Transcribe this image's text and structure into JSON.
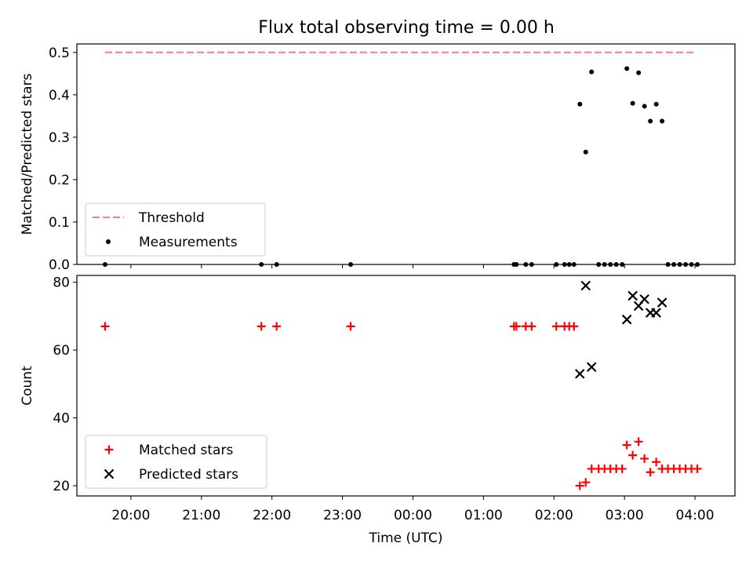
{
  "title": "Flux total observing time = 0.00 h",
  "chart_data": [
    {
      "type": "scatter",
      "ylabel": "Matched/Predicted stars",
      "xlabel": "",
      "ylim": [
        0,
        0.52
      ],
      "yticks": [
        "0.0",
        "0.1",
        "0.2",
        "0.3",
        "0.4",
        "0.5"
      ],
      "grid": false,
      "legend": "lower-left",
      "threshold": {
        "name": "Threshold",
        "value": 0.5,
        "x_start": "19:38",
        "x_end": "04:00",
        "color": "#f27f7f",
        "style": "dashed"
      },
      "series": [
        {
          "name": "Measurements",
          "color": "#000000",
          "marker": "dot",
          "x": [
            "19:38",
            "21:51",
            "22:04",
            "23:07",
            "01:26",
            "01:28",
            "01:36",
            "01:41",
            "02:02",
            "02:09",
            "02:13",
            "02:17",
            "02:22",
            "02:27",
            "02:32",
            "02:38",
            "02:43",
            "02:48",
            "02:53",
            "02:58",
            "03:02",
            "03:07",
            "03:12",
            "03:17",
            "03:22",
            "03:27",
            "03:32",
            "03:37",
            "03:42",
            "03:47",
            "03:52",
            "03:57",
            "04:02"
          ],
          "y": [
            0,
            0,
            0,
            0,
            0,
            0,
            0,
            0,
            0,
            0,
            0,
            0,
            0.378,
            0.265,
            0.454,
            0,
            0,
            0,
            0,
            0,
            0.462,
            0.38,
            0.452,
            0.373,
            0.338,
            0.378,
            0.338,
            0,
            0,
            0,
            0,
            0,
            0
          ]
        }
      ]
    },
    {
      "type": "scatter",
      "ylabel": "Count",
      "xlabel": "Time (UTC)",
      "ylim": [
        17,
        82
      ],
      "yticks": [
        "20",
        "40",
        "60",
        "80"
      ],
      "xticks": [
        "20:00",
        "21:00",
        "22:00",
        "23:00",
        "00:00",
        "01:00",
        "02:00",
        "03:00",
        "04:00"
      ],
      "grid": false,
      "legend": "lower-left",
      "series": [
        {
          "name": "Matched stars",
          "color": "#ff0000",
          "marker": "plus",
          "x": [
            "19:38",
            "21:51",
            "22:04",
            "23:07",
            "01:26",
            "01:28",
            "01:36",
            "01:41",
            "02:02",
            "02:09",
            "02:13",
            "02:17",
            "02:22",
            "02:27",
            "02:32",
            "02:38",
            "02:43",
            "02:48",
            "02:53",
            "02:58",
            "03:02",
            "03:07",
            "03:12",
            "03:17",
            "03:22",
            "03:27",
            "03:32",
            "03:37",
            "03:42",
            "03:47",
            "03:52",
            "03:57",
            "04:02"
          ],
          "y": [
            67,
            67,
            67,
            67,
            67,
            67,
            67,
            67,
            67,
            67,
            67,
            67,
            20,
            21,
            25,
            25,
            25,
            25,
            25,
            25,
            32,
            29,
            33,
            28,
            24,
            27,
            25,
            25,
            25,
            25,
            25,
            25,
            25
          ]
        },
        {
          "name": "Predicted stars",
          "color": "#000000",
          "marker": "x",
          "x": [
            "02:22",
            "02:27",
            "02:32",
            "03:02",
            "03:07",
            "03:12",
            "03:17",
            "03:22",
            "03:27",
            "03:32"
          ],
          "y": [
            53,
            79,
            55,
            69,
            76,
            73,
            75,
            71,
            71,
            74
          ]
        }
      ]
    }
  ]
}
